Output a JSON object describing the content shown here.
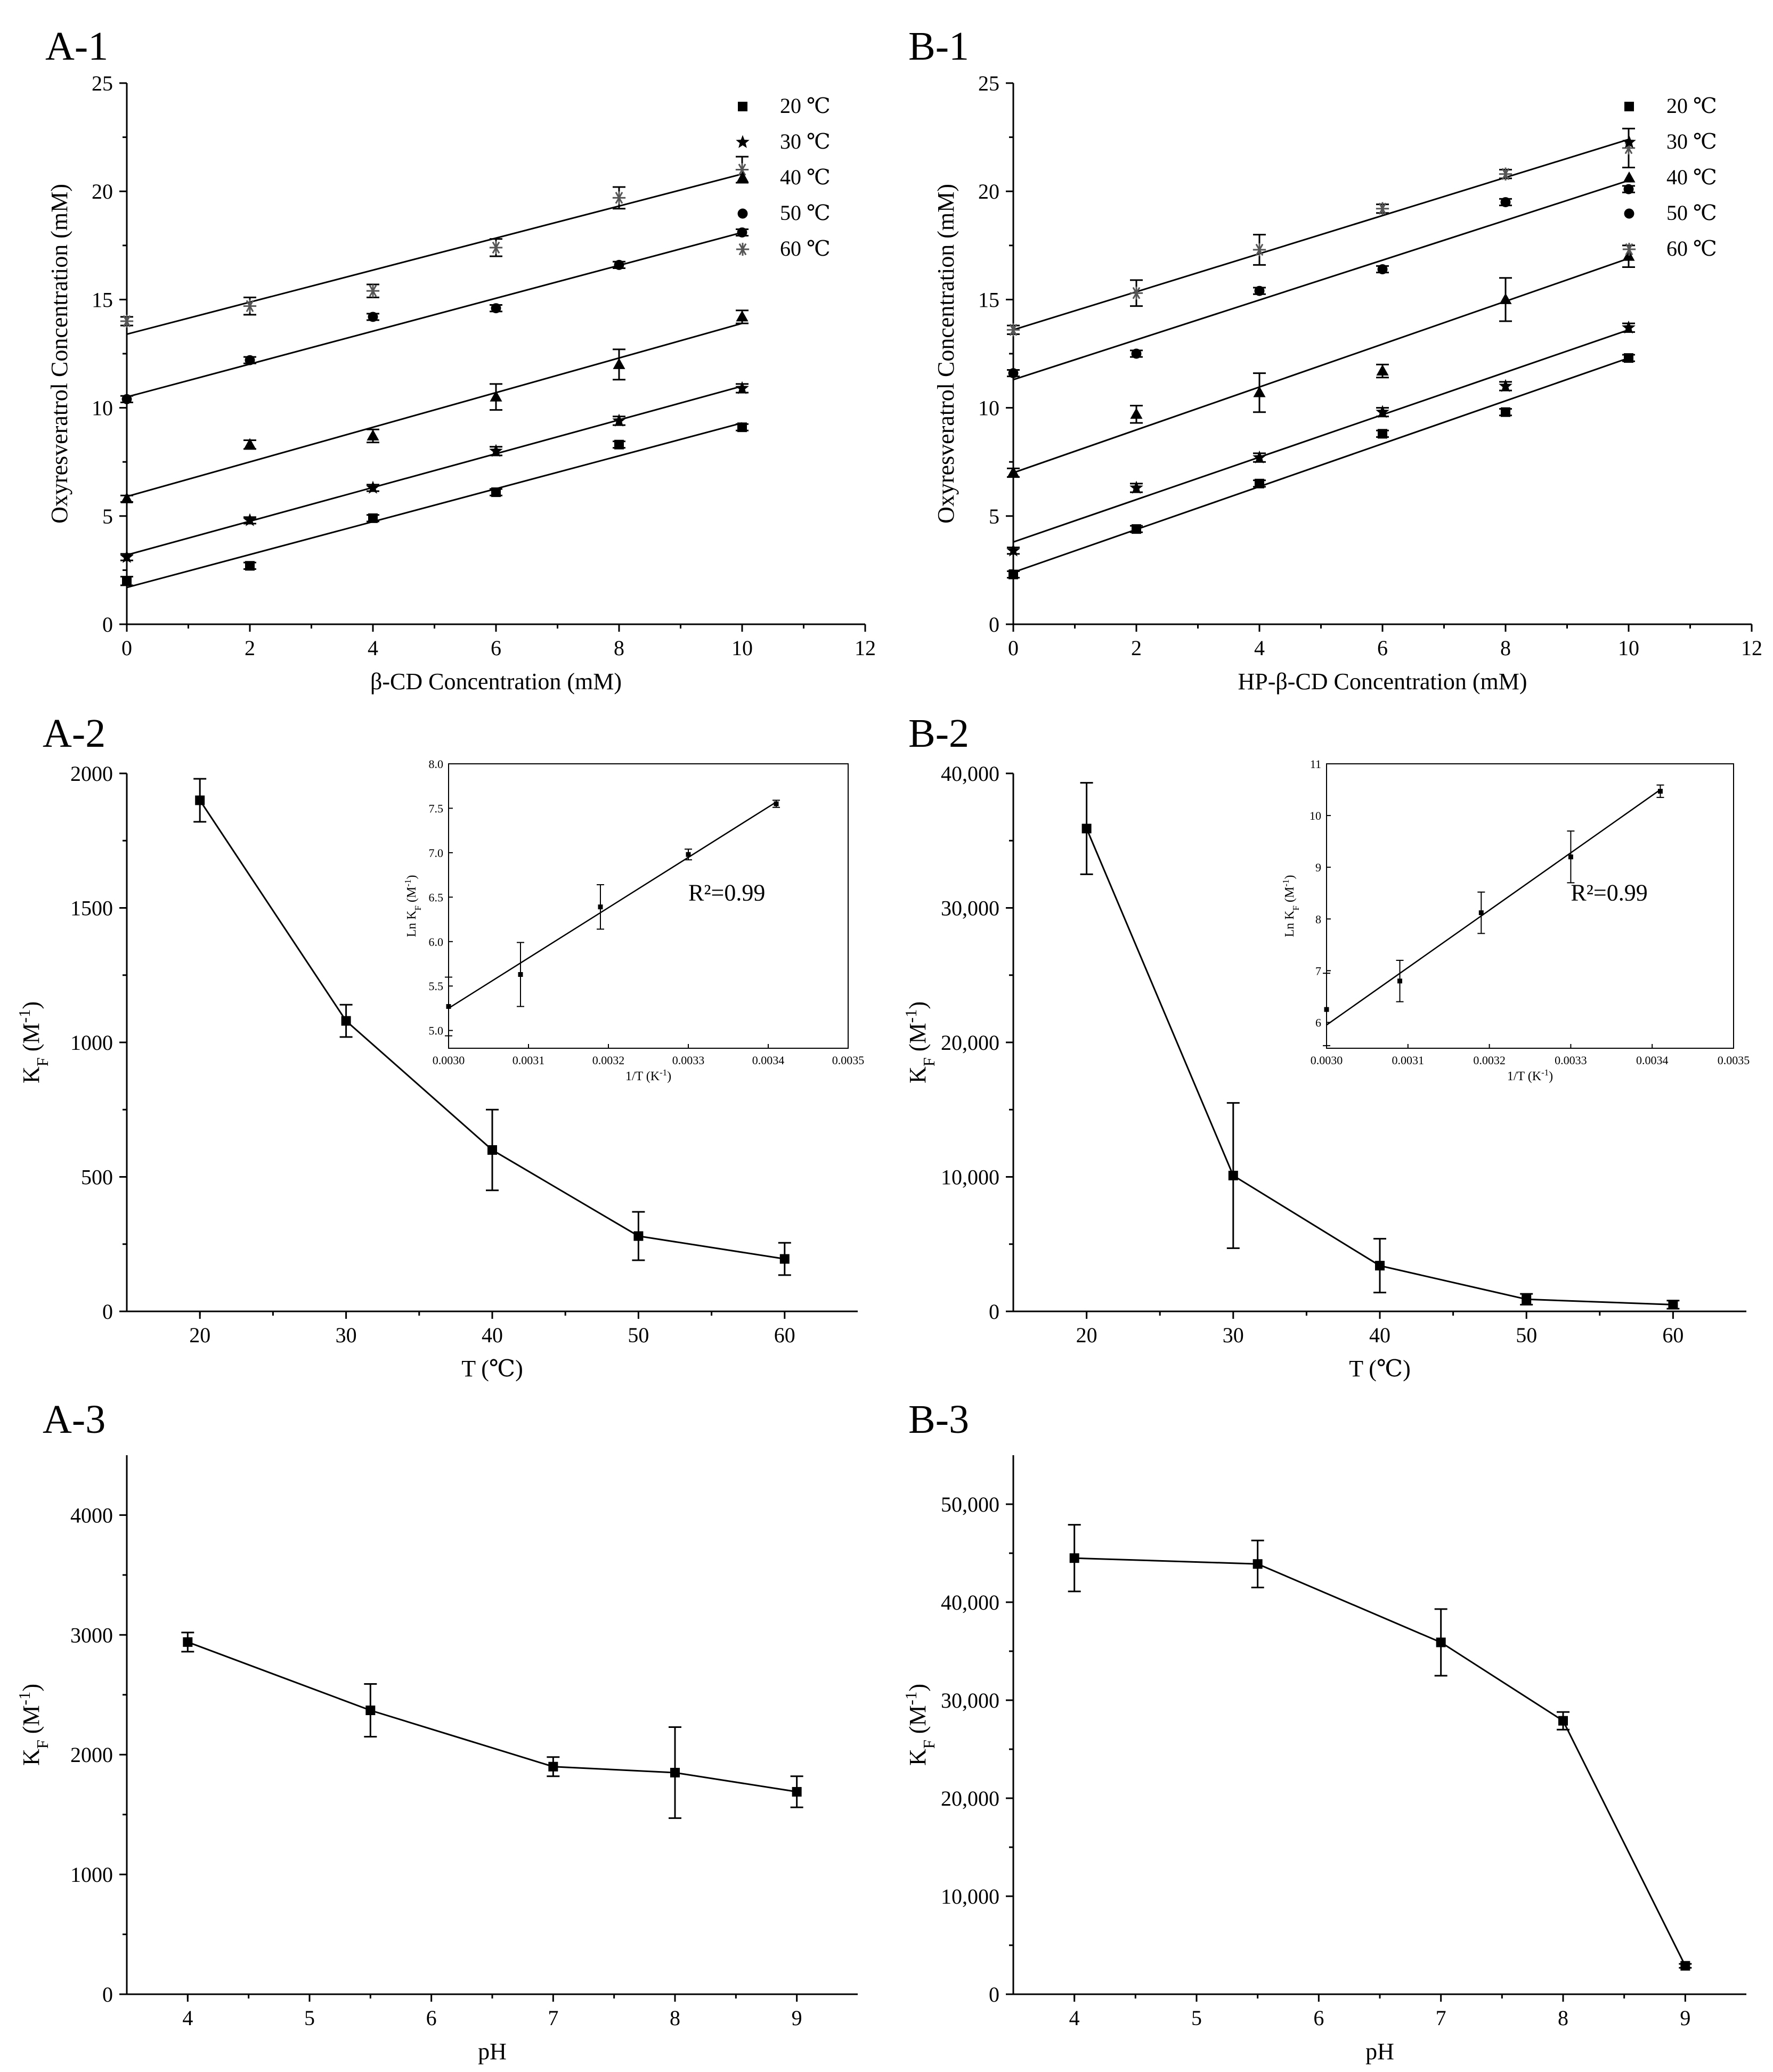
{
  "chart_data": [
    {
      "id": "A1",
      "panel_label": "A-1",
      "type": "scatter",
      "xlabel": "β-CD Concentration (mM)",
      "ylabel": "Oxyresveratrol Concentration (mM)",
      "xlim": [
        0,
        12
      ],
      "ylim": [
        0,
        25
      ],
      "xticks": [
        "0",
        "2",
        "4",
        "6",
        "8",
        "10",
        "12"
      ],
      "yticks": [
        "0",
        "5",
        "10",
        "15",
        "20",
        "25"
      ],
      "legend_position": "top-right",
      "series": [
        {
          "name": "20 ℃",
          "marker": "square",
          "x": [
            0,
            2,
            4,
            6,
            8,
            10
          ],
          "y": [
            2.0,
            2.7,
            4.9,
            6.1,
            8.3,
            9.1
          ],
          "err": [
            0.2,
            0.15,
            0.15,
            0.15,
            0.15,
            0.15
          ],
          "fit": [
            1.7,
            0.76
          ]
        },
        {
          "name": "30 ℃",
          "marker": "star",
          "x": [
            0,
            2,
            4,
            6,
            8,
            10
          ],
          "y": [
            3.1,
            4.8,
            6.3,
            8.0,
            9.4,
            10.9
          ],
          "err": [
            0.15,
            0.15,
            0.15,
            0.2,
            0.2,
            0.2
          ],
          "fit": [
            3.2,
            0.78
          ]
        },
        {
          "name": "40 ℃",
          "marker": "triangle",
          "x": [
            0,
            2,
            4,
            6,
            8,
            10
          ],
          "y": [
            5.8,
            8.3,
            8.7,
            10.5,
            12.0,
            14.2
          ],
          "err": [
            0.15,
            0.2,
            0.3,
            0.6,
            0.7,
            0.3
          ],
          "fit": [
            5.9,
            0.8
          ]
        },
        {
          "name": "50 ℃",
          "marker": "circle",
          "x": [
            0,
            2,
            4,
            6,
            8,
            10
          ],
          "y": [
            10.4,
            12.2,
            14.2,
            14.6,
            16.6,
            18.1
          ],
          "err": [
            0.15,
            0.15,
            0.15,
            0.15,
            0.15,
            0.15
          ],
          "fit": [
            10.5,
            0.76
          ]
        },
        {
          "name": "60 ℃",
          "marker": "asterisk",
          "x": [
            0,
            2,
            4,
            6,
            8,
            10
          ],
          "y": [
            14.0,
            14.7,
            15.4,
            17.4,
            19.7,
            21.0
          ],
          "err": [
            0.2,
            0.4,
            0.3,
            0.4,
            0.5,
            0.6
          ],
          "fit": [
            13.4,
            0.74
          ]
        }
      ]
    },
    {
      "id": "B1",
      "panel_label": "B-1",
      "type": "scatter",
      "xlabel": "HP-β-CD Concentration (mM)",
      "ylabel": "Oxyresveratrol Concentration (mM)",
      "xlim": [
        0,
        12
      ],
      "ylim": [
        0,
        25
      ],
      "xticks": [
        "0",
        "2",
        "4",
        "6",
        "8",
        "10",
        "12"
      ],
      "yticks": [
        "0",
        "5",
        "10",
        "15",
        "20",
        "25"
      ],
      "legend_position": "top-right",
      "series": [
        {
          "name": "20 ℃",
          "marker": "square",
          "x": [
            0,
            2,
            4,
            6,
            8,
            10
          ],
          "y": [
            2.3,
            4.4,
            6.5,
            8.8,
            9.8,
            12.3
          ],
          "err": [
            0.15,
            0.15,
            0.15,
            0.15,
            0.15,
            0.15
          ],
          "fit": [
            2.4,
            0.99
          ]
        },
        {
          "name": "30 ℃",
          "marker": "star",
          "x": [
            0,
            2,
            4,
            6,
            8,
            10
          ],
          "y": [
            3.4,
            6.3,
            7.7,
            9.8,
            11.0,
            13.7
          ],
          "err": [
            0.15,
            0.2,
            0.2,
            0.2,
            0.2,
            0.2
          ],
          "fit": [
            3.8,
            0.98
          ]
        },
        {
          "name": "40 ℃",
          "marker": "triangle",
          "x": [
            0,
            2,
            4,
            6,
            8,
            10
          ],
          "y": [
            7.0,
            9.7,
            10.7,
            11.7,
            15.0,
            17.0
          ],
          "err": [
            0.2,
            0.4,
            0.9,
            0.3,
            1.0,
            0.5
          ],
          "fit": [
            7.0,
            0.99
          ]
        },
        {
          "name": "50 ℃",
          "marker": "circle",
          "x": [
            0,
            2,
            4,
            6,
            8,
            10
          ],
          "y": [
            11.6,
            12.5,
            15.4,
            16.4,
            19.5,
            20.1
          ],
          "err": [
            0.15,
            0.15,
            0.15,
            0.15,
            0.15,
            0.15
          ],
          "fit": [
            11.3,
            0.92
          ]
        },
        {
          "name": "60 ℃",
          "marker": "asterisk",
          "x": [
            0,
            2,
            4,
            6,
            8,
            10
          ],
          "y": [
            13.6,
            15.3,
            17.3,
            19.2,
            20.8,
            22.0
          ],
          "err": [
            0.2,
            0.6,
            0.7,
            0.2,
            0.2,
            0.9
          ],
          "fit": [
            13.6,
            0.88
          ]
        }
      ]
    },
    {
      "id": "A2",
      "panel_label": "A-2",
      "type": "line",
      "xlabel": "T (℃)",
      "ylabel": "K",
      "ylabel_sub": "F",
      "ylabel_unit": "(M",
      "ylabel_sup": "-1",
      "ylabel_close": ")",
      "xlim": [
        15,
        65
      ],
      "ylim": [
        0,
        2000
      ],
      "xticks": [
        "20",
        "30",
        "40",
        "50",
        "60"
      ],
      "yticks": [
        "0",
        "500",
        "1000",
        "1500",
        "2000"
      ],
      "series": [
        {
          "name": "K_F",
          "marker": "square",
          "x": [
            20,
            30,
            40,
            50,
            60
          ],
          "y": [
            1900,
            1080,
            600,
            280,
            195
          ],
          "err": [
            80,
            60,
            150,
            90,
            60
          ]
        }
      ],
      "inset": {
        "type": "scatter",
        "xlabel": "1/T (K",
        "xlabel_sup": "-1",
        "xlabel_close": ")",
        "ylabel": "Ln K",
        "ylabel_sub": "F",
        "ylabel_unit": " (M",
        "ylabel_sup": "-1",
        "ylabel_close": ")",
        "xlim": [
          0.003,
          0.0035
        ],
        "ylim": [
          4.8,
          8.0
        ],
        "xticks": [
          "0.0030",
          "0.0031",
          "0.0032",
          "0.0033",
          "0.0034",
          "0.0035"
        ],
        "yticks": [
          "5.0",
          "5.5",
          "6.0",
          "6.5",
          "7.0",
          "7.5",
          "8.0"
        ],
        "x": [
          0.003,
          0.00309,
          0.00319,
          0.0033,
          0.00341
        ],
        "y": [
          5.27,
          5.63,
          6.39,
          6.98,
          7.55
        ],
        "err": [
          0.33,
          0.36,
          0.25,
          0.06,
          0.04
        ],
        "fit": [
          [
            0.003,
            5.25
          ],
          [
            0.00341,
            7.57
          ]
        ],
        "annotation": "R²=0.99"
      }
    },
    {
      "id": "B2",
      "panel_label": "B-2",
      "type": "line",
      "xlabel": "T (℃)",
      "ylabel": "K",
      "ylabel_sub": "F",
      "ylabel_unit": "(M",
      "ylabel_sup": "-1",
      "ylabel_close": ")",
      "xlim": [
        15,
        65
      ],
      "ylim": [
        0,
        40000
      ],
      "xticks": [
        "20",
        "30",
        "40",
        "50",
        "60"
      ],
      "yticks": [
        "0",
        "10,000",
        "20,000",
        "30,000",
        "40,000"
      ],
      "series": [
        {
          "name": "K_F",
          "marker": "square",
          "x": [
            20,
            30,
            40,
            50,
            60
          ],
          "y": [
            35900,
            10100,
            3400,
            900,
            500
          ],
          "err": [
            3400,
            5400,
            2000,
            400,
            300
          ]
        }
      ],
      "inset": {
        "type": "scatter",
        "xlabel": "1/T (K",
        "xlabel_sup": "-1",
        "xlabel_close": ")",
        "ylabel": "Ln K",
        "ylabel_sub": "F",
        "ylabel_unit": " (M",
        "ylabel_sup": "-1",
        "ylabel_close": ")",
        "xlim": [
          0.003,
          0.0035
        ],
        "ylim": [
          5.5,
          11.0
        ],
        "xticks": [
          "0.0030",
          "0.0031",
          "0.0032",
          "0.0033",
          "0.0034",
          "0.0035"
        ],
        "yticks": [
          "6",
          "7",
          "8",
          "9",
          "10",
          "11"
        ],
        "x": [
          0.003,
          0.00309,
          0.00319,
          0.0033,
          0.00341
        ],
        "y": [
          6.25,
          6.8,
          8.12,
          9.2,
          10.47
        ],
        "err": [
          0.7,
          0.4,
          0.4,
          0.5,
          0.12
        ],
        "fit": [
          [
            0.003,
            5.95
          ],
          [
            0.00341,
            10.5
          ]
        ],
        "annotation": "R²=0.99"
      }
    },
    {
      "id": "A3",
      "panel_label": "A-3",
      "type": "line",
      "xlabel": "pH",
      "ylabel": "K",
      "ylabel_sub": "F",
      "ylabel_unit": "(M",
      "ylabel_sup": "-1",
      "ylabel_close": ")",
      "xlim": [
        3.5,
        9.5
      ],
      "ylim": [
        0,
        4500
      ],
      "xticks": [
        "4",
        "5",
        "6",
        "7",
        "8",
        "9"
      ],
      "yticks": [
        "0",
        "1000",
        "2000",
        "3000",
        "4000"
      ],
      "series": [
        {
          "name": "K_F",
          "marker": "square",
          "x": [
            4,
            5.5,
            7,
            8,
            9
          ],
          "y": [
            2940,
            2370,
            1900,
            1850,
            1690
          ],
          "err": [
            80,
            220,
            80,
            380,
            130
          ]
        }
      ]
    },
    {
      "id": "B3",
      "panel_label": "B-3",
      "type": "line",
      "xlabel": "pH",
      "ylabel": "K",
      "ylabel_sub": "F",
      "ylabel_unit": "(M",
      "ylabel_sup": "-1",
      "ylabel_close": ")",
      "xlim": [
        3.5,
        9.5
      ],
      "ylim": [
        0,
        55000
      ],
      "xticks": [
        "4",
        "5",
        "6",
        "7",
        "8",
        "9"
      ],
      "yticks": [
        "0",
        "10,000",
        "20,000",
        "30,000",
        "40,000",
        "50,000"
      ],
      "series": [
        {
          "name": "K_F",
          "marker": "square",
          "x": [
            4,
            5.5,
            7,
            8,
            9
          ],
          "y": [
            44500,
            43900,
            35900,
            27900,
            2900
          ],
          "err": [
            3400,
            2400,
            3400,
            900,
            200
          ]
        }
      ]
    }
  ]
}
